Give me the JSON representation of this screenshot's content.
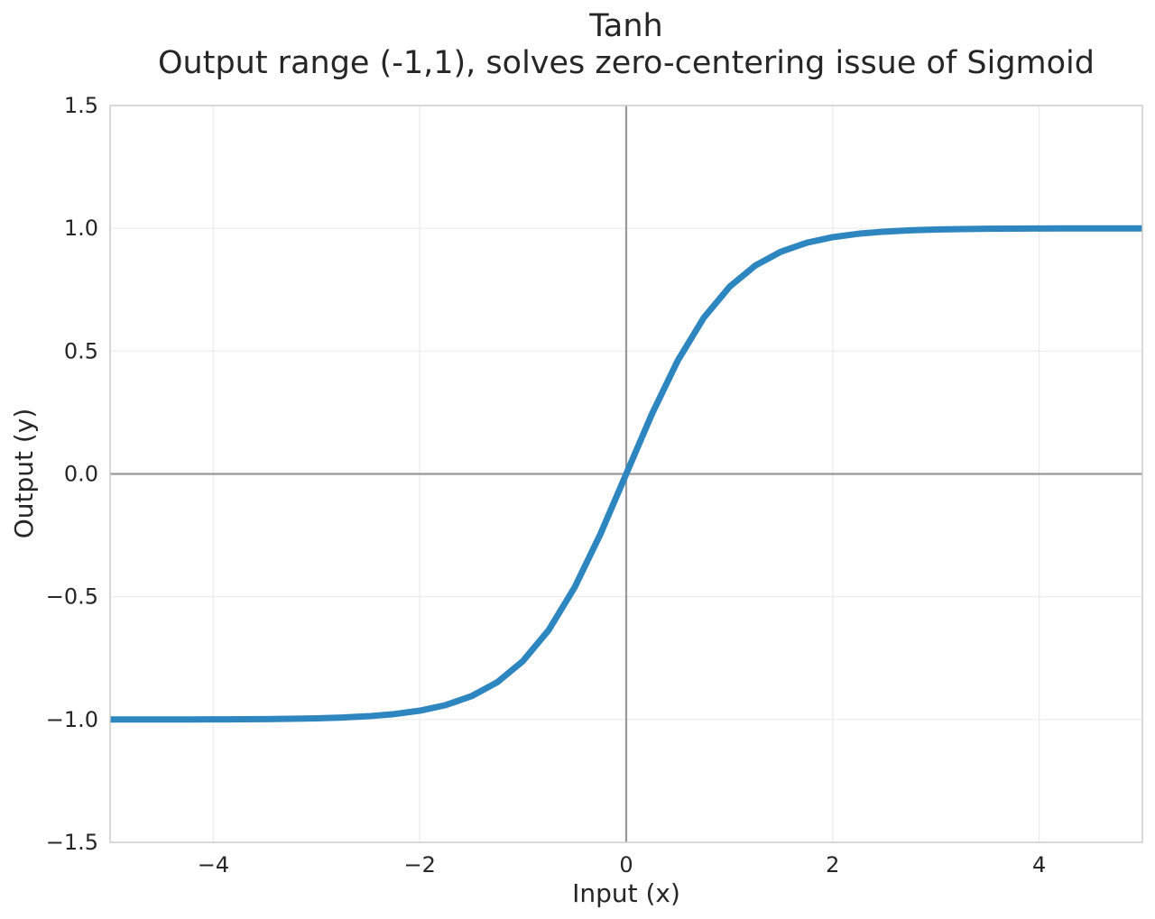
{
  "chart_data": {
    "type": "line",
    "title": "Tanh",
    "subtitle": "Output range (-1,1), solves zero-centering issue of Sigmoid",
    "xlabel": "Input (x)",
    "ylabel": "Output (y)",
    "xlim": [
      -5,
      5
    ],
    "ylim": [
      -1.5,
      1.5
    ],
    "grid": true,
    "xticks": [
      {
        "value": -4,
        "label": "−4"
      },
      {
        "value": -2,
        "label": "−2"
      },
      {
        "value": 0,
        "label": "0"
      },
      {
        "value": 2,
        "label": "2"
      },
      {
        "value": 4,
        "label": "4"
      }
    ],
    "yticks": [
      {
        "value": 1.5,
        "label": "1.5"
      },
      {
        "value": 1.0,
        "label": "1.0"
      },
      {
        "value": 0.5,
        "label": "0.5"
      },
      {
        "value": 0.0,
        "label": "0.0"
      },
      {
        "value": -0.5,
        "label": "−0.5"
      },
      {
        "value": -1.0,
        "label": "−1.0"
      },
      {
        "value": -1.5,
        "label": "−1.5"
      }
    ],
    "reference_lines": {
      "x": 0,
      "y": 0
    },
    "series": [
      {
        "color": "#2e86c1",
        "x": [
          -5.0,
          -4.75,
          -4.5,
          -4.25,
          -4.0,
          -3.75,
          -3.5,
          -3.25,
          -3.0,
          -2.75,
          -2.5,
          -2.25,
          -2.0,
          -1.75,
          -1.5,
          -1.25,
          -1.0,
          -0.75,
          -0.5,
          -0.25,
          0.0,
          0.25,
          0.5,
          0.75,
          1.0,
          1.25,
          1.5,
          1.75,
          2.0,
          2.25,
          2.5,
          2.75,
          3.0,
          3.25,
          3.5,
          3.75,
          4.0,
          4.25,
          4.5,
          4.75,
          5.0
        ],
        "y": [
          -0.9999,
          -0.9999,
          -0.9998,
          -0.9996,
          -0.9993,
          -0.9989,
          -0.9982,
          -0.997,
          -0.9951,
          -0.9918,
          -0.9866,
          -0.978,
          -0.964,
          -0.9414,
          -0.9051,
          -0.8483,
          -0.7616,
          -0.6351,
          -0.4621,
          -0.2449,
          0.0,
          0.2449,
          0.4621,
          0.6351,
          0.7616,
          0.8483,
          0.9051,
          0.9414,
          0.964,
          0.978,
          0.9866,
          0.9918,
          0.9951,
          0.997,
          0.9982,
          0.9989,
          0.9993,
          0.9996,
          0.9998,
          0.9999,
          0.9999
        ]
      }
    ]
  }
}
